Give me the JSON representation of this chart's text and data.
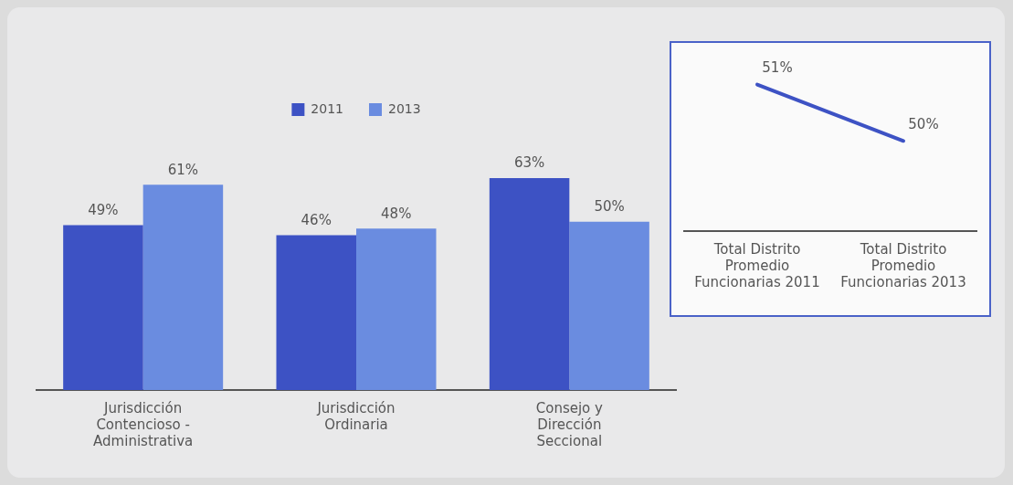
{
  "chart_data": [
    {
      "type": "bar",
      "categories": [
        "Jurisdicción Contencioso - Administrativa",
        "Jurisdicción Ordinaria",
        "Consejo y Dirección Seccional"
      ],
      "series": [
        {
          "name": "2011",
          "color": "#3d52c4",
          "values": [
            49,
            46,
            63
          ],
          "value_labels": [
            "49%",
            "46%",
            "63%"
          ]
        },
        {
          "name": "2013",
          "color": "#6a8ce0",
          "values": [
            61,
            48,
            50
          ],
          "value_labels": [
            "61%",
            "48%",
            "50%"
          ]
        }
      ],
      "legend": "top",
      "grid": false
    },
    {
      "type": "line",
      "categories": [
        "Total Distrito Promedio Funcionarias 2011",
        "Total Distrito Promedio Funcionarias 2013"
      ],
      "series": [
        {
          "color": "#3d52c4",
          "values": [
            51,
            50
          ],
          "value_labels": [
            "51%",
            "50%"
          ]
        }
      ],
      "marker": "none",
      "line_style": "solid",
      "grid": false
    }
  ]
}
